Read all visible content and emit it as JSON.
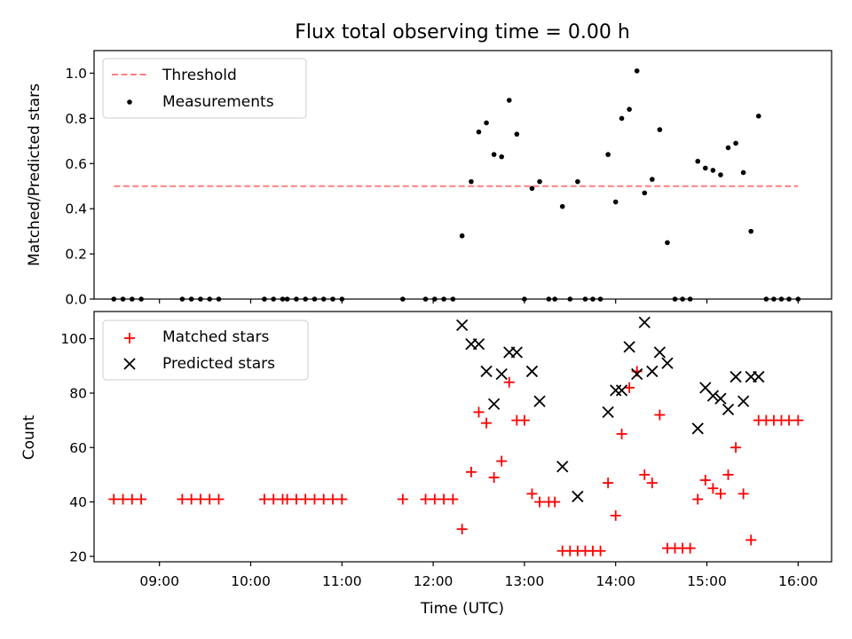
{
  "chart_data": [
    {
      "type": "scatter",
      "title": "Flux total observing time = 0.00 h",
      "ylabel": "Matched/Predicted stars",
      "xlabel": "",
      "xlim": [
        "08:17",
        "16:22"
      ],
      "ylim": [
        0,
        1.1
      ],
      "yticks": [
        "0.0",
        "0.2",
        "0.4",
        "0.6",
        "0.8",
        "1.0"
      ],
      "legend_position": "upper-left",
      "series": [
        {
          "name": "Threshold",
          "kind": "dashed-line",
          "color": "#ff7f7f",
          "points": [
            {
              "x": "08:30",
              "y": 0.5
            },
            {
              "x": "16:00",
              "y": 0.5
            }
          ]
        },
        {
          "name": "Measurements",
          "kind": "dots",
          "color": "#000000",
          "points": [
            {
              "x": "08:30",
              "y": 0
            },
            {
              "x": "08:36",
              "y": 0
            },
            {
              "x": "08:42",
              "y": 0
            },
            {
              "x": "08:48",
              "y": 0
            },
            {
              "x": "09:15",
              "y": 0
            },
            {
              "x": "09:21",
              "y": 0
            },
            {
              "x": "09:27",
              "y": 0
            },
            {
              "x": "09:33",
              "y": 0
            },
            {
              "x": "09:39",
              "y": 0
            },
            {
              "x": "10:09",
              "y": 0
            },
            {
              "x": "10:15",
              "y": 0
            },
            {
              "x": "10:21",
              "y": 0
            },
            {
              "x": "10:24",
              "y": 0
            },
            {
              "x": "10:30",
              "y": 0
            },
            {
              "x": "10:36",
              "y": 0
            },
            {
              "x": "10:42",
              "y": 0
            },
            {
              "x": "10:48",
              "y": 0
            },
            {
              "x": "10:54",
              "y": 0
            },
            {
              "x": "11:00",
              "y": 0
            },
            {
              "x": "11:40",
              "y": 0
            },
            {
              "x": "11:55",
              "y": 0
            },
            {
              "x": "12:01",
              "y": 0
            },
            {
              "x": "12:07",
              "y": 0
            },
            {
              "x": "12:13",
              "y": 0
            },
            {
              "x": "12:19",
              "y": 0.28
            },
            {
              "x": "12:25",
              "y": 0.52
            },
            {
              "x": "12:30",
              "y": 0.74
            },
            {
              "x": "12:35",
              "y": 0.78
            },
            {
              "x": "12:40",
              "y": 0.64
            },
            {
              "x": "12:45",
              "y": 0.63
            },
            {
              "x": "12:50",
              "y": 0.88
            },
            {
              "x": "12:55",
              "y": 0.73
            },
            {
              "x": "13:00",
              "y": 0
            },
            {
              "x": "13:05",
              "y": 0.49
            },
            {
              "x": "13:10",
              "y": 0.52
            },
            {
              "x": "13:16",
              "y": 0
            },
            {
              "x": "13:20",
              "y": 0
            },
            {
              "x": "13:25",
              "y": 0.41
            },
            {
              "x": "13:30",
              "y": 0
            },
            {
              "x": "13:35",
              "y": 0.52
            },
            {
              "x": "13:40",
              "y": 0
            },
            {
              "x": "13:45",
              "y": 0
            },
            {
              "x": "13:50",
              "y": 0
            },
            {
              "x": "13:55",
              "y": 0.64
            },
            {
              "x": "14:00",
              "y": 0.43
            },
            {
              "x": "14:04",
              "y": 0.8
            },
            {
              "x": "14:09",
              "y": 0.84
            },
            {
              "x": "14:14",
              "y": 1.01
            },
            {
              "x": "14:19",
              "y": 0.47
            },
            {
              "x": "14:24",
              "y": 0.53
            },
            {
              "x": "14:29",
              "y": 0.75
            },
            {
              "x": "14:34",
              "y": 0.25
            },
            {
              "x": "14:39",
              "y": 0
            },
            {
              "x": "14:44",
              "y": 0
            },
            {
              "x": "14:49",
              "y": 0
            },
            {
              "x": "14:54",
              "y": 0.61
            },
            {
              "x": "14:59",
              "y": 0.58
            },
            {
              "x": "15:04",
              "y": 0.57
            },
            {
              "x": "15:09",
              "y": 0.55
            },
            {
              "x": "15:14",
              "y": 0.67
            },
            {
              "x": "15:19",
              "y": 0.69
            },
            {
              "x": "15:24",
              "y": 0.56
            },
            {
              "x": "15:29",
              "y": 0.3
            },
            {
              "x": "15:34",
              "y": 0.81
            },
            {
              "x": "15:39",
              "y": 0
            },
            {
              "x": "15:44",
              "y": 0
            },
            {
              "x": "15:49",
              "y": 0
            },
            {
              "x": "15:54",
              "y": 0
            },
            {
              "x": "16:00",
              "y": 0
            }
          ]
        }
      ]
    },
    {
      "type": "scatter",
      "ylabel": "Count",
      "xlabel": "Time (UTC)",
      "xlim": [
        "08:17",
        "16:22"
      ],
      "ylim": [
        18,
        110
      ],
      "yticks": [
        "20",
        "40",
        "60",
        "80",
        "100"
      ],
      "xticks": [
        "09:00",
        "10:00",
        "11:00",
        "12:00",
        "13:00",
        "14:00",
        "15:00",
        "16:00"
      ],
      "legend_position": "upper-left",
      "series": [
        {
          "name": "Matched stars",
          "kind": "plus",
          "color": "#ff0000",
          "points": [
            {
              "x": "08:30",
              "y": 41
            },
            {
              "x": "08:36",
              "y": 41
            },
            {
              "x": "08:42",
              "y": 41
            },
            {
              "x": "08:48",
              "y": 41
            },
            {
              "x": "09:15",
              "y": 41
            },
            {
              "x": "09:21",
              "y": 41
            },
            {
              "x": "09:27",
              "y": 41
            },
            {
              "x": "09:33",
              "y": 41
            },
            {
              "x": "09:39",
              "y": 41
            },
            {
              "x": "10:09",
              "y": 41
            },
            {
              "x": "10:15",
              "y": 41
            },
            {
              "x": "10:21",
              "y": 41
            },
            {
              "x": "10:24",
              "y": 41
            },
            {
              "x": "10:30",
              "y": 41
            },
            {
              "x": "10:36",
              "y": 41
            },
            {
              "x": "10:42",
              "y": 41
            },
            {
              "x": "10:48",
              "y": 41
            },
            {
              "x": "10:54",
              "y": 41
            },
            {
              "x": "11:00",
              "y": 41
            },
            {
              "x": "11:40",
              "y": 41
            },
            {
              "x": "11:55",
              "y": 41
            },
            {
              "x": "12:01",
              "y": 41
            },
            {
              "x": "12:07",
              "y": 41
            },
            {
              "x": "12:13",
              "y": 41
            },
            {
              "x": "12:19",
              "y": 30
            },
            {
              "x": "12:25",
              "y": 51
            },
            {
              "x": "12:30",
              "y": 73
            },
            {
              "x": "12:35",
              "y": 69
            },
            {
              "x": "12:40",
              "y": 49
            },
            {
              "x": "12:45",
              "y": 55
            },
            {
              "x": "12:50",
              "y": 84
            },
            {
              "x": "12:55",
              "y": 70
            },
            {
              "x": "13:00",
              "y": 70
            },
            {
              "x": "13:05",
              "y": 43
            },
            {
              "x": "13:10",
              "y": 40
            },
            {
              "x": "13:16",
              "y": 40
            },
            {
              "x": "13:20",
              "y": 40
            },
            {
              "x": "13:25",
              "y": 22
            },
            {
              "x": "13:30",
              "y": 22
            },
            {
              "x": "13:35",
              "y": 22
            },
            {
              "x": "13:40",
              "y": 22
            },
            {
              "x": "13:45",
              "y": 22
            },
            {
              "x": "13:50",
              "y": 22
            },
            {
              "x": "13:55",
              "y": 47
            },
            {
              "x": "14:00",
              "y": 35
            },
            {
              "x": "14:04",
              "y": 65
            },
            {
              "x": "14:09",
              "y": 82
            },
            {
              "x": "14:14",
              "y": 88
            },
            {
              "x": "14:19",
              "y": 50
            },
            {
              "x": "14:24",
              "y": 47
            },
            {
              "x": "14:29",
              "y": 72
            },
            {
              "x": "14:34",
              "y": 23
            },
            {
              "x": "14:39",
              "y": 23
            },
            {
              "x": "14:44",
              "y": 23
            },
            {
              "x": "14:49",
              "y": 23
            },
            {
              "x": "14:54",
              "y": 41
            },
            {
              "x": "14:59",
              "y": 48
            },
            {
              "x": "15:04",
              "y": 45
            },
            {
              "x": "15:09",
              "y": 43
            },
            {
              "x": "15:14",
              "y": 50
            },
            {
              "x": "15:19",
              "y": 60
            },
            {
              "x": "15:24",
              "y": 43
            },
            {
              "x": "15:29",
              "y": 26
            },
            {
              "x": "15:34",
              "y": 70
            },
            {
              "x": "15:39",
              "y": 70
            },
            {
              "x": "15:44",
              "y": 70
            },
            {
              "x": "15:49",
              "y": 70
            },
            {
              "x": "15:54",
              "y": 70
            },
            {
              "x": "16:00",
              "y": 70
            }
          ]
        },
        {
          "name": "Predicted stars",
          "kind": "x",
          "color": "#000000",
          "points": [
            {
              "x": "12:19",
              "y": 105
            },
            {
              "x": "12:25",
              "y": 98
            },
            {
              "x": "12:30",
              "y": 98
            },
            {
              "x": "12:35",
              "y": 88
            },
            {
              "x": "12:40",
              "y": 76
            },
            {
              "x": "12:45",
              "y": 87
            },
            {
              "x": "12:50",
              "y": 95
            },
            {
              "x": "12:55",
              "y": 95
            },
            {
              "x": "13:05",
              "y": 88
            },
            {
              "x": "13:10",
              "y": 77
            },
            {
              "x": "13:25",
              "y": 53
            },
            {
              "x": "13:35",
              "y": 42
            },
            {
              "x": "13:55",
              "y": 73
            },
            {
              "x": "14:00",
              "y": 81
            },
            {
              "x": "14:04",
              "y": 81
            },
            {
              "x": "14:09",
              "y": 97
            },
            {
              "x": "14:14",
              "y": 87
            },
            {
              "x": "14:19",
              "y": 106
            },
            {
              "x": "14:24",
              "y": 88
            },
            {
              "x": "14:29",
              "y": 95
            },
            {
              "x": "14:34",
              "y": 91
            },
            {
              "x": "14:54",
              "y": 67
            },
            {
              "x": "14:59",
              "y": 82
            },
            {
              "x": "15:04",
              "y": 79
            },
            {
              "x": "15:09",
              "y": 78
            },
            {
              "x": "15:14",
              "y": 74
            },
            {
              "x": "15:19",
              "y": 86
            },
            {
              "x": "15:24",
              "y": 77
            },
            {
              "x": "15:29",
              "y": 86
            },
            {
              "x": "15:34",
              "y": 86
            }
          ]
        }
      ]
    }
  ]
}
